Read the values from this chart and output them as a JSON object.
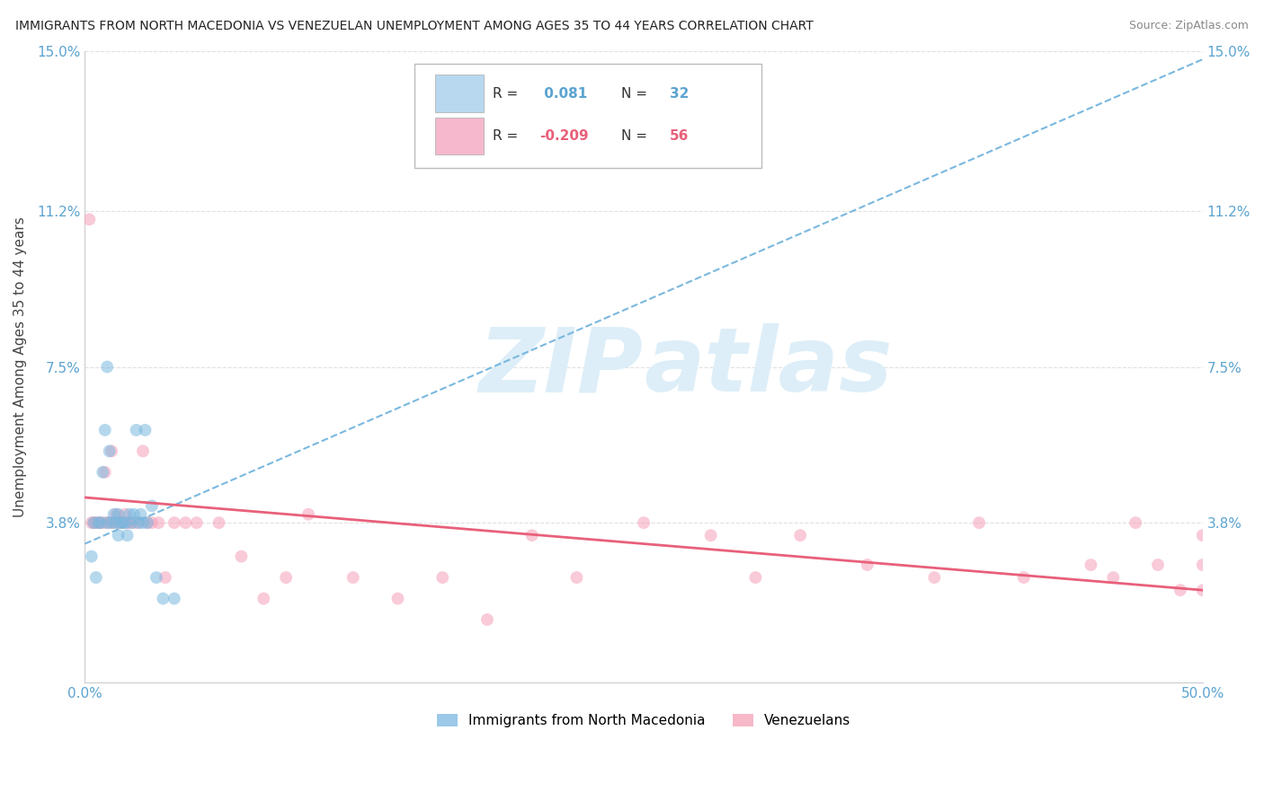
{
  "title": "IMMIGRANTS FROM NORTH MACEDONIA VS VENEZUELAN UNEMPLOYMENT AMONG AGES 35 TO 44 YEARS CORRELATION CHART",
  "source": "Source: ZipAtlas.com",
  "ylabel": "Unemployment Among Ages 35 to 44 years",
  "xlim": [
    0.0,
    0.5
  ],
  "ylim": [
    0.0,
    0.15
  ],
  "yticks": [
    0.0,
    0.038,
    0.075,
    0.112,
    0.15
  ],
  "ytick_labels_left": [
    "",
    "3.8%",
    "7.5%",
    "11.2%",
    "15.0%"
  ],
  "ytick_labels_right": [
    "",
    "3.8%",
    "7.5%",
    "11.2%",
    "15.0%"
  ],
  "xticks": [
    0.0,
    0.125,
    0.25,
    0.375,
    0.5
  ],
  "xtick_labels": [
    "0.0%",
    "",
    "",
    "",
    "50.0%"
  ],
  "blue_scatter_x": [
    0.003,
    0.004,
    0.005,
    0.006,
    0.007,
    0.008,
    0.009,
    0.01,
    0.01,
    0.011,
    0.012,
    0.013,
    0.014,
    0.015,
    0.015,
    0.016,
    0.017,
    0.018,
    0.019,
    0.02,
    0.021,
    0.022,
    0.023,
    0.024,
    0.025,
    0.026,
    0.027,
    0.028,
    0.03,
    0.032,
    0.035,
    0.04
  ],
  "blue_scatter_y": [
    0.03,
    0.038,
    0.025,
    0.038,
    0.038,
    0.05,
    0.06,
    0.075,
    0.038,
    0.055,
    0.038,
    0.04,
    0.038,
    0.04,
    0.035,
    0.038,
    0.038,
    0.038,
    0.035,
    0.04,
    0.038,
    0.04,
    0.06,
    0.038,
    0.04,
    0.038,
    0.06,
    0.038,
    0.042,
    0.025,
    0.02,
    0.02
  ],
  "pink_scatter_x": [
    0.002,
    0.003,
    0.004,
    0.005,
    0.006,
    0.007,
    0.008,
    0.009,
    0.01,
    0.011,
    0.012,
    0.013,
    0.014,
    0.015,
    0.016,
    0.017,
    0.018,
    0.019,
    0.02,
    0.022,
    0.024,
    0.026,
    0.028,
    0.03,
    0.033,
    0.036,
    0.04,
    0.045,
    0.05,
    0.06,
    0.07,
    0.08,
    0.09,
    0.1,
    0.12,
    0.14,
    0.16,
    0.18,
    0.2,
    0.22,
    0.25,
    0.28,
    0.3,
    0.32,
    0.35,
    0.38,
    0.4,
    0.42,
    0.45,
    0.46,
    0.47,
    0.48,
    0.49,
    0.5,
    0.5,
    0.5
  ],
  "pink_scatter_y": [
    0.11,
    0.038,
    0.038,
    0.038,
    0.038,
    0.038,
    0.038,
    0.05,
    0.038,
    0.038,
    0.055,
    0.038,
    0.04,
    0.038,
    0.038,
    0.038,
    0.04,
    0.038,
    0.038,
    0.038,
    0.038,
    0.055,
    0.038,
    0.038,
    0.038,
    0.025,
    0.038,
    0.038,
    0.038,
    0.038,
    0.03,
    0.02,
    0.025,
    0.04,
    0.025,
    0.02,
    0.025,
    0.015,
    0.035,
    0.025,
    0.038,
    0.035,
    0.025,
    0.035,
    0.028,
    0.025,
    0.038,
    0.025,
    0.028,
    0.025,
    0.038,
    0.028,
    0.022,
    0.035,
    0.028,
    0.022
  ],
  "blue_line_x0": 0.0,
  "blue_line_x1": 0.5,
  "blue_line_y0": 0.033,
  "blue_line_y1": 0.148,
  "pink_line_x0": 0.0,
  "pink_line_x1": 0.5,
  "pink_line_y0": 0.044,
  "pink_line_y1": 0.022,
  "scatter_color_blue": "#7ab8df",
  "scatter_color_pink": "#f5a0b8",
  "line_color_blue": "#7ab8df",
  "line_color_pink": "#e8607a",
  "scatter_alpha": 0.55,
  "scatter_size": 100,
  "watermark_text": "ZIP",
  "watermark_text2": "atlas",
  "watermark_color": "#ddeef8",
  "background_color": "#ffffff",
  "grid_color": "#e0e0e0",
  "title_color": "#222222",
  "axis_label_color": "#444444",
  "tick_label_color": "#5ba3d0",
  "legend_r_blue": "0.081",
  "legend_n_blue": "32",
  "legend_r_pink": "-0.209",
  "legend_n_pink": "56",
  "legend_box_color_blue": "#b8d8f0",
  "legend_box_color_pink": "#f5b8cc",
  "bottom_legend_label_blue": "Immigrants from North Macedonia",
  "bottom_legend_label_pink": "Venezuelans"
}
